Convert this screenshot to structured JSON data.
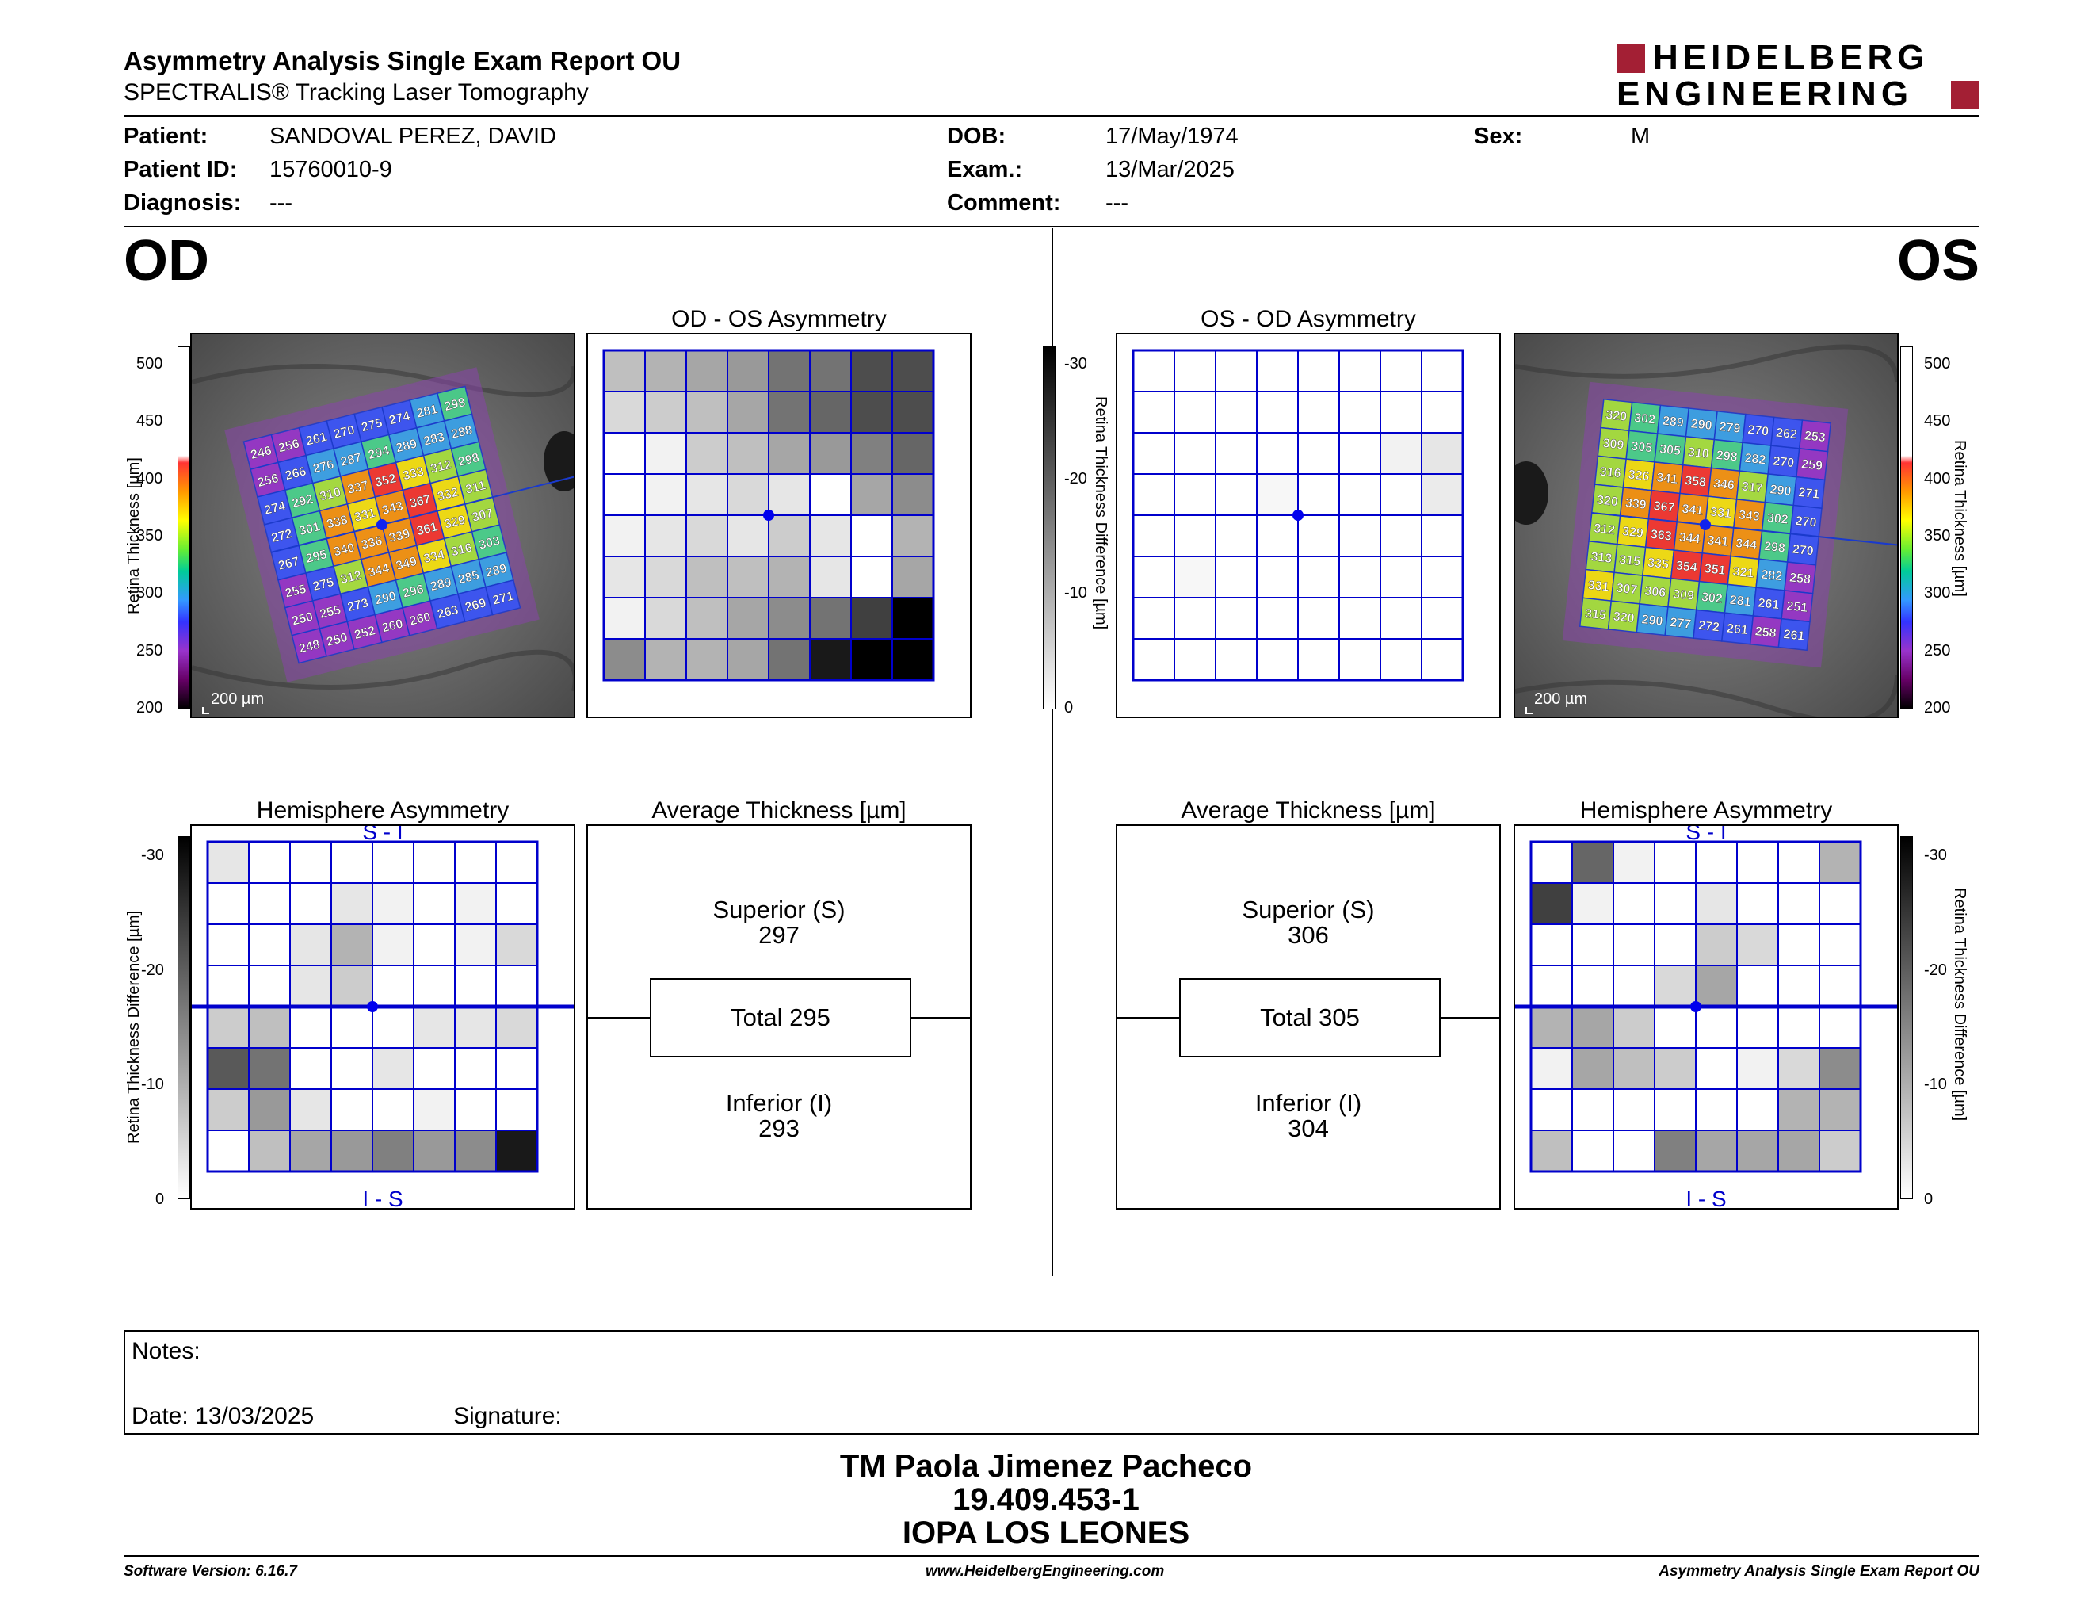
{
  "header": {
    "title": "Asymmetry Analysis Single Exam Report OU",
    "subtitle": "SPECTRALIS® Tracking Laser Tomography",
    "brand_line1": "HEIDELBERG",
    "brand_line2": "ENGINEERING",
    "brand_color": "#a31f34"
  },
  "patient": {
    "patient_label": "Patient:",
    "patient_value": "SANDOVAL PEREZ, DAVID",
    "id_label": "Patient ID:",
    "id_value": "15760010-9",
    "diagnosis_label": "Diagnosis:",
    "diagnosis_value": "---",
    "dob_label": "DOB:",
    "dob_value": "17/May/1974",
    "exam_label": "Exam.:",
    "exam_value": "13/Mar/2025",
    "comment_label": "Comment:",
    "comment_value": "---",
    "sex_label": "Sex:",
    "sex_value": "M"
  },
  "od": {
    "eye_label": "OD",
    "asym_title": "OD - OS Asymmetry",
    "hemi_title": "Hemisphere Asymmetry",
    "avg_title": "Average Thickness [µm]",
    "scale_text": "200 µm",
    "superior_label": "Superior (S)",
    "superior_value": "297",
    "total_label": "Total 295",
    "inferior_label": "Inferior (I)",
    "inferior_value": "293",
    "hemi_top": "S - I",
    "hemi_bottom": "I - S",
    "thickness_grid": [
      [
        246,
        256,
        261,
        270,
        275,
        274,
        281,
        298
      ],
      [
        256,
        266,
        276,
        287,
        294,
        289,
        283,
        288
      ],
      [
        274,
        292,
        310,
        337,
        352,
        333,
        312,
        298
      ],
      [
        272,
        301,
        338,
        331,
        343,
        367,
        332,
        311
      ],
      [
        267,
        295,
        340,
        336,
        339,
        361,
        329,
        307
      ],
      [
        255,
        275,
        312,
        344,
        349,
        334,
        316,
        303
      ],
      [
        250,
        255,
        273,
        290,
        296,
        289,
        285,
        289
      ],
      [
        248,
        250,
        252,
        260,
        260,
        263,
        269,
        271
      ]
    ],
    "asym_grid": [
      [
        0.25,
        0.3,
        0.35,
        0.4,
        0.55,
        0.55,
        0.7,
        0.7
      ],
      [
        0.15,
        0.2,
        0.25,
        0.35,
        0.55,
        0.6,
        0.7,
        0.7
      ],
      [
        0.0,
        0.05,
        0.2,
        0.25,
        0.35,
        0.4,
        0.5,
        0.6
      ],
      [
        0.0,
        0.05,
        0.1,
        0.15,
        0.1,
        0.0,
        0.35,
        0.45
      ],
      [
        0.05,
        0.1,
        0.15,
        0.1,
        0.2,
        0.1,
        0.0,
        0.3
      ],
      [
        0.1,
        0.15,
        0.25,
        0.25,
        0.3,
        0.1,
        0.0,
        0.35
      ],
      [
        0.05,
        0.15,
        0.25,
        0.35,
        0.45,
        0.55,
        0.75,
        1.0
      ],
      [
        0.45,
        0.3,
        0.3,
        0.35,
        0.55,
        0.9,
        1.0,
        1.0
      ]
    ],
    "hemi_grid": [
      [
        0.1,
        0.0,
        0.0,
        0.0,
        0.0,
        0.0,
        0.0,
        0.0
      ],
      [
        0.0,
        0.0,
        0.0,
        0.1,
        0.05,
        0.0,
        0.05,
        0.0
      ],
      [
        0.0,
        0.0,
        0.1,
        0.3,
        0.05,
        0.0,
        0.05,
        0.15
      ],
      [
        0.0,
        0.0,
        0.1,
        0.2,
        0.0,
        0.0,
        0.0,
        0.0
      ],
      [
        0.2,
        0.25,
        0.0,
        0.0,
        0.0,
        0.1,
        0.1,
        0.15
      ],
      [
        0.65,
        0.55,
        0.0,
        0.0,
        0.1,
        0.0,
        0.0,
        0.0
      ],
      [
        0.2,
        0.4,
        0.1,
        0.0,
        0.0,
        0.05,
        0.0,
        0.0
      ],
      [
        0.0,
        0.25,
        0.35,
        0.4,
        0.5,
        0.4,
        0.45,
        0.9
      ]
    ]
  },
  "os": {
    "eye_label": "OS",
    "asym_title": "OS - OD Asymmetry",
    "hemi_title": "Hemisphere Asymmetry",
    "avg_title": "Average Thickness [µm]",
    "scale_text": "200 µm",
    "superior_label": "Superior (S)",
    "superior_value": "306",
    "total_label": "Total 305",
    "inferior_label": "Inferior (I)",
    "inferior_value": "304",
    "hemi_top": "S - I",
    "hemi_bottom": "I - S",
    "thickness_grid": [
      [
        320,
        302,
        289,
        290,
        279,
        270,
        262,
        253
      ],
      [
        309,
        305,
        305,
        310,
        298,
        282,
        270,
        259
      ],
      [
        316,
        326,
        341,
        358,
        346,
        317,
        290,
        271
      ],
      [
        320,
        339,
        367,
        341,
        331,
        343,
        302,
        270
      ],
      [
        312,
        329,
        363,
        344,
        341,
        344,
        298,
        270
      ],
      [
        313,
        315,
        335,
        354,
        351,
        321,
        282,
        258
      ],
      [
        331,
        307,
        306,
        309,
        302,
        281,
        261,
        251
      ],
      [
        315,
        320,
        290,
        277,
        272,
        261,
        258,
        261
      ]
    ],
    "asym_grid": [
      [
        0,
        0,
        0,
        0,
        0,
        0,
        0,
        0
      ],
      [
        0,
        0,
        0,
        0,
        0,
        0,
        0,
        0
      ],
      [
        0,
        0,
        0,
        0,
        0,
        0,
        0.05,
        0.1
      ],
      [
        0,
        0,
        0,
        0.03,
        0,
        0,
        0,
        0.08
      ],
      [
        0,
        0,
        0,
        0,
        0,
        0,
        0,
        0
      ],
      [
        0,
        0.03,
        0,
        0,
        0,
        0,
        0,
        0
      ],
      [
        0,
        0,
        0,
        0,
        0,
        0,
        0,
        0
      ],
      [
        0,
        0,
        0,
        0,
        0,
        0,
        0,
        0
      ]
    ],
    "hemi_grid": [
      [
        0.0,
        0.6,
        0.05,
        0.0,
        0.0,
        0.0,
        0.0,
        0.3
      ],
      [
        0.75,
        0.05,
        0.0,
        0.0,
        0.1,
        0.0,
        0.0,
        0.0
      ],
      [
        0.0,
        0.0,
        0.0,
        0.0,
        0.2,
        0.15,
        0.0,
        0.0
      ],
      [
        0.0,
        0.0,
        0.0,
        0.15,
        0.35,
        0.0,
        0.0,
        0.0
      ],
      [
        0.3,
        0.35,
        0.2,
        0.0,
        0.0,
        0.0,
        0.0,
        0.0
      ],
      [
        0.05,
        0.35,
        0.25,
        0.2,
        0.0,
        0.05,
        0.15,
        0.45
      ],
      [
        0.0,
        0.0,
        0.0,
        0.0,
        0.0,
        0.0,
        0.3,
        0.3
      ],
      [
        0.25,
        0.0,
        0.0,
        0.5,
        0.35,
        0.35,
        0.35,
        0.2
      ]
    ]
  },
  "thickness_scale": {
    "ticks": [
      "500",
      "450",
      "400",
      "350",
      "300",
      "250",
      "200"
    ],
    "label": "Retina Thickness [µm]"
  },
  "diff_scale": {
    "ticks": [
      "-30",
      "-20",
      "-10",
      "0"
    ],
    "label": "Retina Thickness Difference [µm]"
  },
  "notes": {
    "notes_label": "Notes:",
    "date_label": "Date: 13/03/2025",
    "signature_label": "Signature:"
  },
  "signature_block": {
    "line1": "TM Paola Jimenez Pacheco",
    "line2": "19.409.453-1",
    "line3": "IOPA LOS LEONES"
  },
  "footer": {
    "software": "Software Version: 6.16.7",
    "website": "www.HeidelbergEngineering.com",
    "report": "Asymmetry Analysis Single Exam Report OU"
  }
}
